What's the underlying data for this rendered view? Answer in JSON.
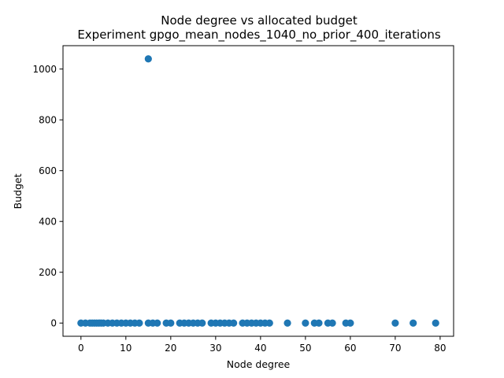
{
  "chart_data": {
    "type": "scatter",
    "title_line1": "Node degree vs allocated budget",
    "title_line2": "Experiment gpgo_mean_nodes_1040_no_prior_400_iterations",
    "xlabel": "Node degree",
    "ylabel": "Budget",
    "xlim": [
      -4,
      83
    ],
    "ylim": [
      -52,
      1092
    ],
    "xticks": [
      0,
      10,
      20,
      30,
      40,
      50,
      60,
      70,
      80
    ],
    "yticks": [
      0,
      200,
      400,
      600,
      800,
      1000
    ],
    "grid": false,
    "legend": "none",
    "marker_color": "#1f77b4",
    "series": [
      {
        "points": [
          {
            "x": 0,
            "y": 0
          },
          {
            "x": 1,
            "y": 0
          },
          {
            "x": 2,
            "y": 0
          },
          {
            "x": 2.5,
            "y": 0
          },
          {
            "x": 3,
            "y": 0
          },
          {
            "x": 3.5,
            "y": 0
          },
          {
            "x": 4,
            "y": 0
          },
          {
            "x": 4.5,
            "y": 0
          },
          {
            "x": 5,
            "y": 0
          },
          {
            "x": 6,
            "y": 0
          },
          {
            "x": 7,
            "y": 0
          },
          {
            "x": 8,
            "y": 0
          },
          {
            "x": 9,
            "y": 0
          },
          {
            "x": 10,
            "y": 0
          },
          {
            "x": 11,
            "y": 0
          },
          {
            "x": 12,
            "y": 0
          },
          {
            "x": 13,
            "y": 0
          },
          {
            "x": 15,
            "y": 0
          },
          {
            "x": 15,
            "y": 1040
          },
          {
            "x": 16,
            "y": 0
          },
          {
            "x": 17,
            "y": 0
          },
          {
            "x": 19,
            "y": 0
          },
          {
            "x": 20,
            "y": 0
          },
          {
            "x": 22,
            "y": 0
          },
          {
            "x": 23,
            "y": 0
          },
          {
            "x": 24,
            "y": 0
          },
          {
            "x": 25,
            "y": 0
          },
          {
            "x": 26,
            "y": 0
          },
          {
            "x": 27,
            "y": 0
          },
          {
            "x": 29,
            "y": 0
          },
          {
            "x": 30,
            "y": 0
          },
          {
            "x": 31,
            "y": 0
          },
          {
            "x": 32,
            "y": 0
          },
          {
            "x": 33,
            "y": 0
          },
          {
            "x": 34,
            "y": 0
          },
          {
            "x": 36,
            "y": 0
          },
          {
            "x": 37,
            "y": 0
          },
          {
            "x": 38,
            "y": 0
          },
          {
            "x": 39,
            "y": 0
          },
          {
            "x": 40,
            "y": 0
          },
          {
            "x": 41,
            "y": 0
          },
          {
            "x": 42,
            "y": 0
          },
          {
            "x": 46,
            "y": 0
          },
          {
            "x": 50,
            "y": 0
          },
          {
            "x": 52,
            "y": 0
          },
          {
            "x": 53,
            "y": 0
          },
          {
            "x": 55,
            "y": 0
          },
          {
            "x": 56,
            "y": 0
          },
          {
            "x": 59,
            "y": 0
          },
          {
            "x": 60,
            "y": 0
          },
          {
            "x": 70,
            "y": 0
          },
          {
            "x": 74,
            "y": 0
          },
          {
            "x": 79,
            "y": 0
          }
        ]
      }
    ]
  }
}
